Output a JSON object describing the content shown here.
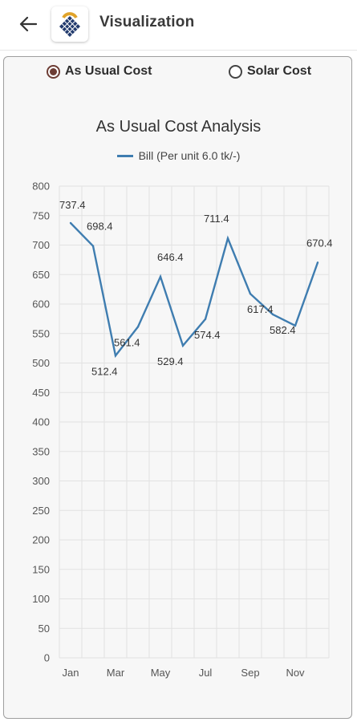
{
  "appbar": {
    "title": "Visualization",
    "back_icon": "arrow-left-icon",
    "logo_icon": "solar-panel-sun-logo"
  },
  "radio_group": {
    "options": [
      {
        "label": "As Usual Cost",
        "selected": true
      },
      {
        "label": "Solar Cost",
        "selected": false
      }
    ]
  },
  "chart": {
    "title": "As Usual Cost Analysis",
    "legend_label": "Bill (Per unit 6.0 tk/-)"
  },
  "chart_data": {
    "type": "line",
    "title": "As Usual Cost Analysis",
    "x_tick_labels": [
      "Jan",
      "Mar",
      "May",
      "Jul",
      "Sep",
      "Nov"
    ],
    "y_ticks": [
      0,
      50,
      100,
      150,
      200,
      250,
      300,
      350,
      400,
      450,
      500,
      550,
      600,
      650,
      700,
      750,
      800
    ],
    "ylim": [
      0,
      800
    ],
    "grid": true,
    "legend_position": "top",
    "series": [
      {
        "name": "Bill (Per unit 6.0 tk/-)",
        "color": "#3f7db0",
        "x": [
          "Jan",
          "Feb",
          "Mar",
          "Apr",
          "May",
          "Jun",
          "Jul",
          "Aug",
          "Sep",
          "Oct",
          "Nov",
          "Dec"
        ],
        "values": [
          737.4,
          698.4,
          512.4,
          561.4,
          646.4,
          529.4,
          574.4,
          711.4,
          617.4,
          582.4,
          563.4,
          670.4
        ],
        "point_labels": [
          "737.4",
          "698.4",
          "512.4",
          "561.4",
          "646.4",
          "529.4",
          "574.4",
          "711.4",
          "617.4",
          "582.4",
          null,
          "670.4"
        ]
      }
    ]
  }
}
